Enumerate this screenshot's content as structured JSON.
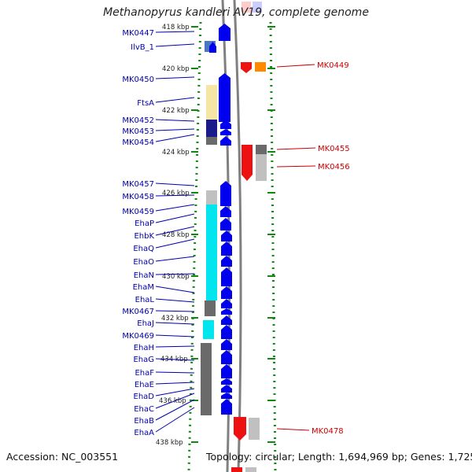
{
  "title": "Methanopyrus kandleri AV19, complete genome",
  "footer": {
    "accession": "Accession: NC_003551",
    "topology": "Topology: circular; Length: 1,694,969 bp; Genes: 1,725"
  },
  "colors": {
    "gene_blue": "#0000ee",
    "gene_red": "#ee1111",
    "label_blue": "#0000aa",
    "label_red": "#cc0000",
    "ruler_green": "#118811",
    "backbone_gray": "#808080",
    "cog_yellow": "#f5e6a6",
    "cog_cyan": "#00e5ee",
    "cog_darkgray": "#6a6a6a",
    "cog_lightgray": "#c0c0c0",
    "cog_orange": "#ff8a00",
    "cog_steelblue": "#4a78c0",
    "cog_navy": "#1a1a8a"
  },
  "ruler_labels": [
    "418 kbp",
    "420 kbp",
    "422 kbp",
    "424 kbp",
    "426 kbp",
    "428 kbp",
    "430 kbp",
    "432 kbp",
    "434 kbp",
    "436 kbp",
    "438 kbp"
  ],
  "left_genes": [
    "MK0447",
    "IlvB_1",
    "MK0450",
    "FtsA",
    "MK0452",
    "MK0453",
    "MK0454",
    "MK0457",
    "MK0458",
    "MK0459",
    "EhaP",
    "EhbK",
    "EhaQ",
    "EhaO",
    "EhaN",
    "EhaM",
    "EhaL",
    "MK0467",
    "EhaJ",
    "MK0469",
    "EhaH",
    "EhaG",
    "EhaF",
    "EhaE",
    "EhaD",
    "EhaC",
    "EhaB",
    "EhaA"
  ],
  "right_genes": [
    "MK0449",
    "MK0455",
    "MK0456",
    "MK0478"
  ]
}
